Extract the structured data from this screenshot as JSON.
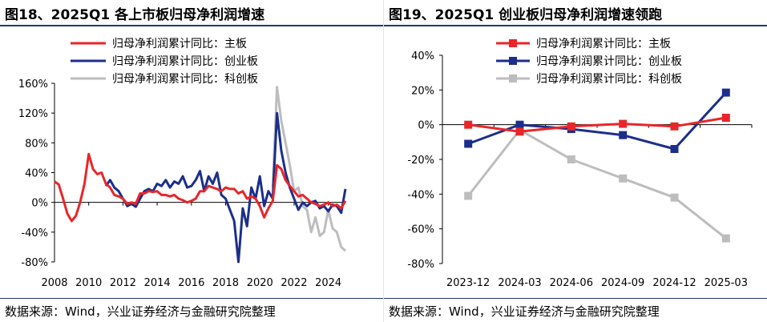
{
  "chart_data": [
    {
      "type": "line",
      "title": "图18、2025Q1 各上市板归母净利润增速",
      "source": "数据来源：Wind，兴业证券经济与金融研究院整理",
      "xlabel": "",
      "ylabel": "",
      "x_tick_labels": [
        "2008",
        "2010",
        "2012",
        "2014",
        "2016",
        "2018",
        "2020",
        "2022",
        "2024"
      ],
      "xlim": [
        2008,
        2025
      ],
      "ylim": [
        -80,
        160
      ],
      "y_ticks": [
        -80,
        -40,
        0,
        40,
        80,
        120,
        160
      ],
      "y_tick_labels": [
        "-80%",
        "-40%",
        "0%",
        "40%",
        "80%",
        "120%",
        "160%"
      ],
      "legend_position": "top-left",
      "series": [
        {
          "name": "归母净利润累计同比：主板",
          "color": "#e8262a",
          "x": [
            2008.0,
            2008.25,
            2008.5,
            2008.75,
            2009.0,
            2009.25,
            2009.5,
            2009.75,
            2010.0,
            2010.25,
            2010.5,
            2010.75,
            2011.0,
            2011.25,
            2011.5,
            2011.75,
            2012.0,
            2012.25,
            2012.5,
            2012.75,
            2013.0,
            2013.25,
            2013.5,
            2013.75,
            2014.0,
            2014.25,
            2014.5,
            2014.75,
            2015.0,
            2015.25,
            2015.5,
            2015.75,
            2016.0,
            2016.25,
            2016.5,
            2016.75,
            2017.0,
            2017.25,
            2017.5,
            2017.75,
            2018.0,
            2018.25,
            2018.5,
            2018.75,
            2019.0,
            2019.25,
            2019.5,
            2019.75,
            2020.0,
            2020.25,
            2020.5,
            2020.75,
            2021.0,
            2021.25,
            2021.5,
            2021.75,
            2022.0,
            2022.25,
            2022.5,
            2022.75,
            2023.0,
            2023.25,
            2023.5,
            2023.75,
            2024.0,
            2024.25,
            2024.5,
            2024.75,
            2025.0
          ],
          "values": [
            28,
            24,
            5,
            -15,
            -25,
            -18,
            0,
            25,
            65,
            45,
            38,
            40,
            25,
            20,
            10,
            8,
            5,
            -2,
            0,
            -2,
            12,
            12,
            15,
            14,
            15,
            10,
            10,
            8,
            10,
            5,
            3,
            0,
            2,
            5,
            15,
            15,
            22,
            20,
            18,
            15,
            20,
            18,
            18,
            12,
            15,
            5,
            8,
            5,
            -5,
            -20,
            -8,
            2,
            50,
            45,
            30,
            22,
            15,
            8,
            10,
            5,
            0,
            -2,
            -5,
            -3,
            0,
            -5,
            -3,
            -8,
            2
          ]
        },
        {
          "name": "归母净利润累计同比：创业板",
          "color": "#1b2f8a",
          "x": [
            2011.0,
            2011.25,
            2011.5,
            2011.75,
            2012.0,
            2012.25,
            2012.5,
            2012.75,
            2013.0,
            2013.25,
            2013.5,
            2013.75,
            2014.0,
            2014.25,
            2014.5,
            2014.75,
            2015.0,
            2015.25,
            2015.5,
            2015.75,
            2016.0,
            2016.25,
            2016.5,
            2016.75,
            2017.0,
            2017.25,
            2017.5,
            2017.75,
            2018.0,
            2018.25,
            2018.5,
            2018.75,
            2019.0,
            2019.25,
            2019.5,
            2019.75,
            2020.0,
            2020.25,
            2020.5,
            2020.75,
            2021.0,
            2021.25,
            2021.5,
            2021.75,
            2022.0,
            2022.25,
            2022.5,
            2022.75,
            2023.0,
            2023.25,
            2023.5,
            2023.75,
            2024.0,
            2024.25,
            2024.5,
            2024.75,
            2025.0
          ],
          "values": [
            22,
            30,
            20,
            15,
            5,
            -5,
            -2,
            -6,
            5,
            15,
            18,
            15,
            25,
            22,
            30,
            20,
            28,
            25,
            35,
            20,
            22,
            30,
            42,
            15,
            35,
            25,
            40,
            10,
            5,
            -10,
            -25,
            -80,
            -8,
            -32,
            20,
            5,
            35,
            -5,
            15,
            5,
            120,
            70,
            40,
            20,
            5,
            -10,
            0,
            -5,
            0,
            2,
            -8,
            -5,
            -12,
            -3,
            -5,
            -14,
            18
          ]
        },
        {
          "name": "归母净利润累计同比：科创板",
          "color": "#bdbdbd",
          "x": [
            2020.75,
            2021.0,
            2021.25,
            2021.5,
            2021.75,
            2022.0,
            2022.25,
            2022.5,
            2022.75,
            2023.0,
            2023.25,
            2023.5,
            2023.75,
            2024.0,
            2024.25,
            2024.5,
            2024.75,
            2025.0
          ],
          "values": [
            20,
            155,
            110,
            80,
            50,
            15,
            20,
            -5,
            -10,
            -40,
            -20,
            -45,
            -40,
            -10,
            -35,
            -40,
            -60,
            -65
          ]
        }
      ]
    },
    {
      "type": "line",
      "title": "图19、2025Q1 创业板归母净利润增速领跑",
      "source": "数据来源：Wind，兴业证券经济与金融研究院整理",
      "xlabel": "",
      "ylabel": "",
      "categories": [
        "2023-12",
        "2024-03",
        "2024-06",
        "2024-09",
        "2024-12",
        "2025-03"
      ],
      "ylim": [
        -80,
        40
      ],
      "y_ticks": [
        -80,
        -60,
        -40,
        -20,
        0,
        20,
        40
      ],
      "y_tick_labels": [
        "-80%",
        "-60%",
        "-40%",
        "-20%",
        "0%",
        "20%",
        "40%"
      ],
      "legend_position": "top-center",
      "series": [
        {
          "name": "归母净利润累计同比：主板",
          "color": "#e8262a",
          "values": [
            0,
            -4,
            -1,
            0.5,
            -1,
            4
          ]
        },
        {
          "name": "归母净利润累计同比：创业板",
          "color": "#1b2f8a",
          "values": [
            -11,
            0,
            -2.5,
            -6,
            -14,
            18.5
          ]
        },
        {
          "name": "归母净利润累计同比：科创板",
          "color": "#bdbdbd",
          "values": [
            -41,
            -3,
            -20,
            -31,
            -42,
            -65.5
          ]
        }
      ]
    }
  ]
}
